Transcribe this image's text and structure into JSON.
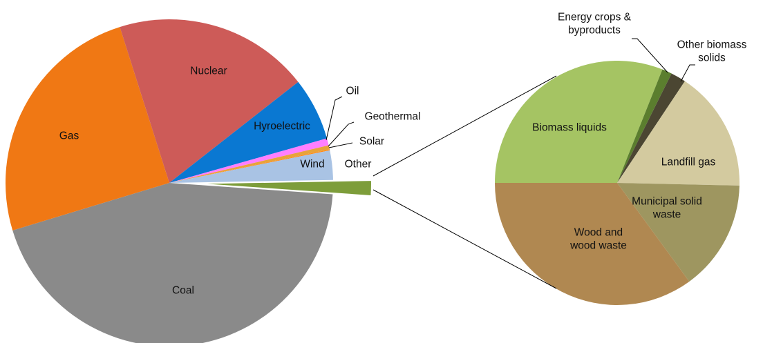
{
  "chart_data": [
    {
      "type": "pie",
      "categories": [
        "Coal",
        "Gas",
        "Nuclear",
        "Hyroelectric",
        "Oil",
        "Geothermal",
        "Solar",
        "Wind",
        "Other"
      ],
      "values": [
        44.2,
        24.8,
        19.3,
        6.2,
        0.7,
        0.4,
        0.1,
        2.9,
        1.4
      ],
      "colors": [
        "#8a8a8a",
        "#f07814",
        "#cd5b58",
        "#0a78d2",
        "#ff7fff",
        "#e8a33a",
        "#ff8c1a",
        "#a9c3e4",
        "#7d9d3a"
      ]
    },
    {
      "type": "pie",
      "categories": [
        "Biomass liquids",
        "Energy crops & byproducts",
        "Other biomass solids",
        "Landfill gas",
        "Municipal solid waste",
        "Wood and wood waste"
      ],
      "values": [
        31,
        1.3,
        2,
        16,
        14.6,
        35
      ],
      "colors": [
        "#a5c463",
        "#5b7e2e",
        "#4b4632",
        "#d3ca9f",
        "#9e9660",
        "#b08851"
      ]
    }
  ]
}
